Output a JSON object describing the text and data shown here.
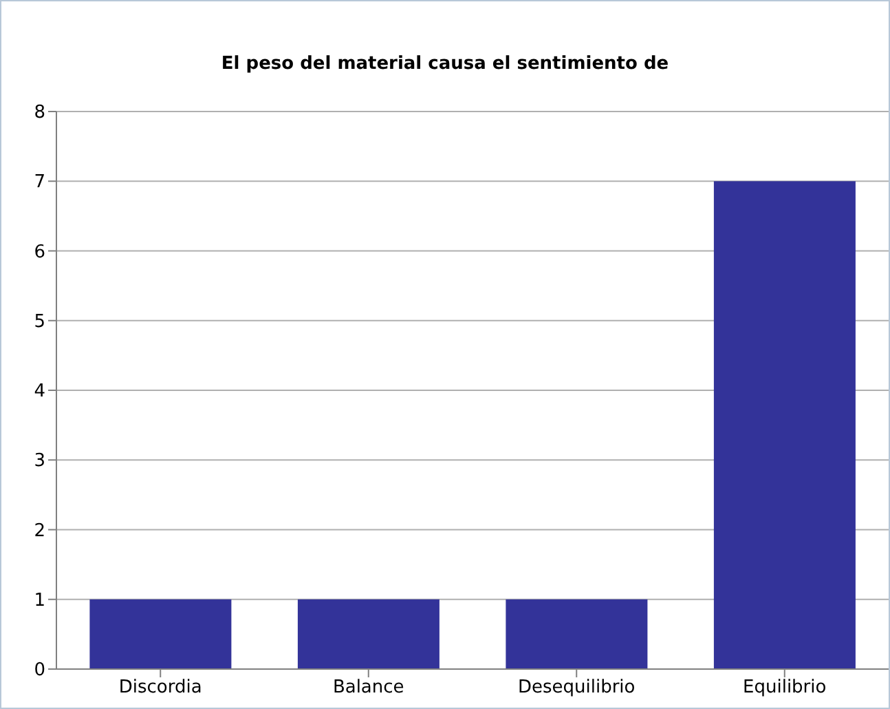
{
  "chart_data": {
    "type": "bar",
    "title": "El peso del material causa el sentimiento de",
    "categories": [
      "Discordia",
      "Balance",
      "Desequilibrio",
      "Equilibrio"
    ],
    "values": [
      1,
      1,
      1,
      7
    ],
    "color": "#333399",
    "ylim": [
      0,
      8
    ],
    "yticks": [
      0,
      1,
      2,
      3,
      4,
      5,
      6,
      7,
      8
    ],
    "grid": "y"
  }
}
